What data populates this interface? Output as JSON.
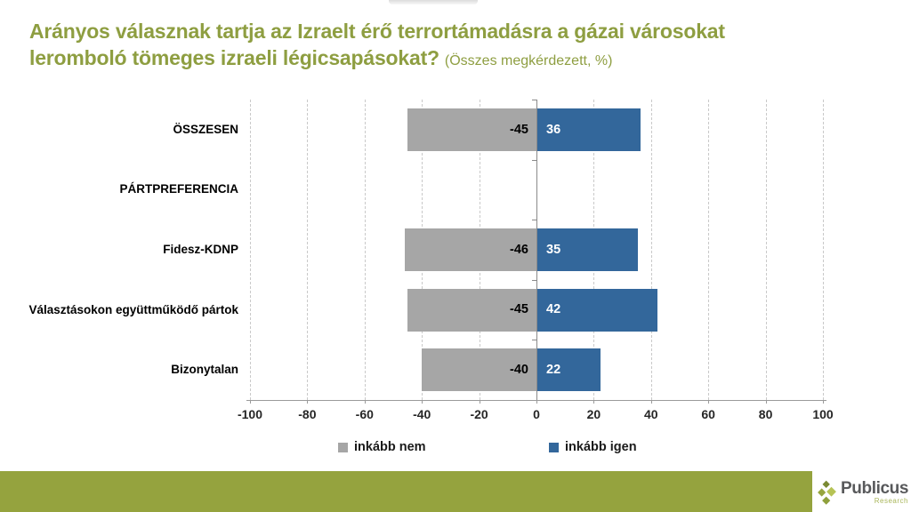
{
  "title": {
    "lines": [
      "Arányos válasznak tartja az Izraelt érő terrortámadásra a gázai városokat",
      "leromboló tömeges izraeli légicsapásokat?"
    ],
    "suffix": "(Összes megkérdezett, %)"
  },
  "chart_data": {
    "type": "bar",
    "orientation": "horizontal",
    "diverging": true,
    "title": "Arányos válasznak tartja az Izraelt érő terrortámadásra a gázai városokat leromboló tömeges izraeli légicsapásokat? (Összes megkérdezett, %)",
    "categories": [
      "ÖSSZESEN",
      "PÁRTPREFERENCIA",
      "Fidesz-KDNP",
      "Választásokon együttműködő pártok",
      "Bizonytalan"
    ],
    "series": [
      {
        "name": "inkább nem",
        "color": "#A6A6A6",
        "label_color": "#000000",
        "values": [
          -45,
          null,
          -46,
          -45,
          -40
        ]
      },
      {
        "name": "inkább igen",
        "color": "#33679B",
        "label_color": "#FFFFFF",
        "values": [
          36,
          null,
          35,
          42,
          22
        ]
      }
    ],
    "xlim": [
      -100,
      100
    ],
    "xticks": [
      -100,
      -80,
      -60,
      -40,
      -20,
      0,
      20,
      40,
      60,
      80,
      100
    ],
    "grid": "vertical-dashed",
    "legend_position": "bottom",
    "unit": "%"
  },
  "footer": {
    "brand": "Publicus",
    "brand_sub": "Research"
  },
  "colors": {
    "title": "#8E9E41",
    "footer_bar": "#95A33E",
    "bar_negative": "#A6A6A6",
    "bar_positive": "#33679B",
    "gridline": "#C9C9C9",
    "axis": "#9B9B9B",
    "zero_line": "#8A8A8A",
    "tick_label": "#262626",
    "category_label": "#000000"
  }
}
